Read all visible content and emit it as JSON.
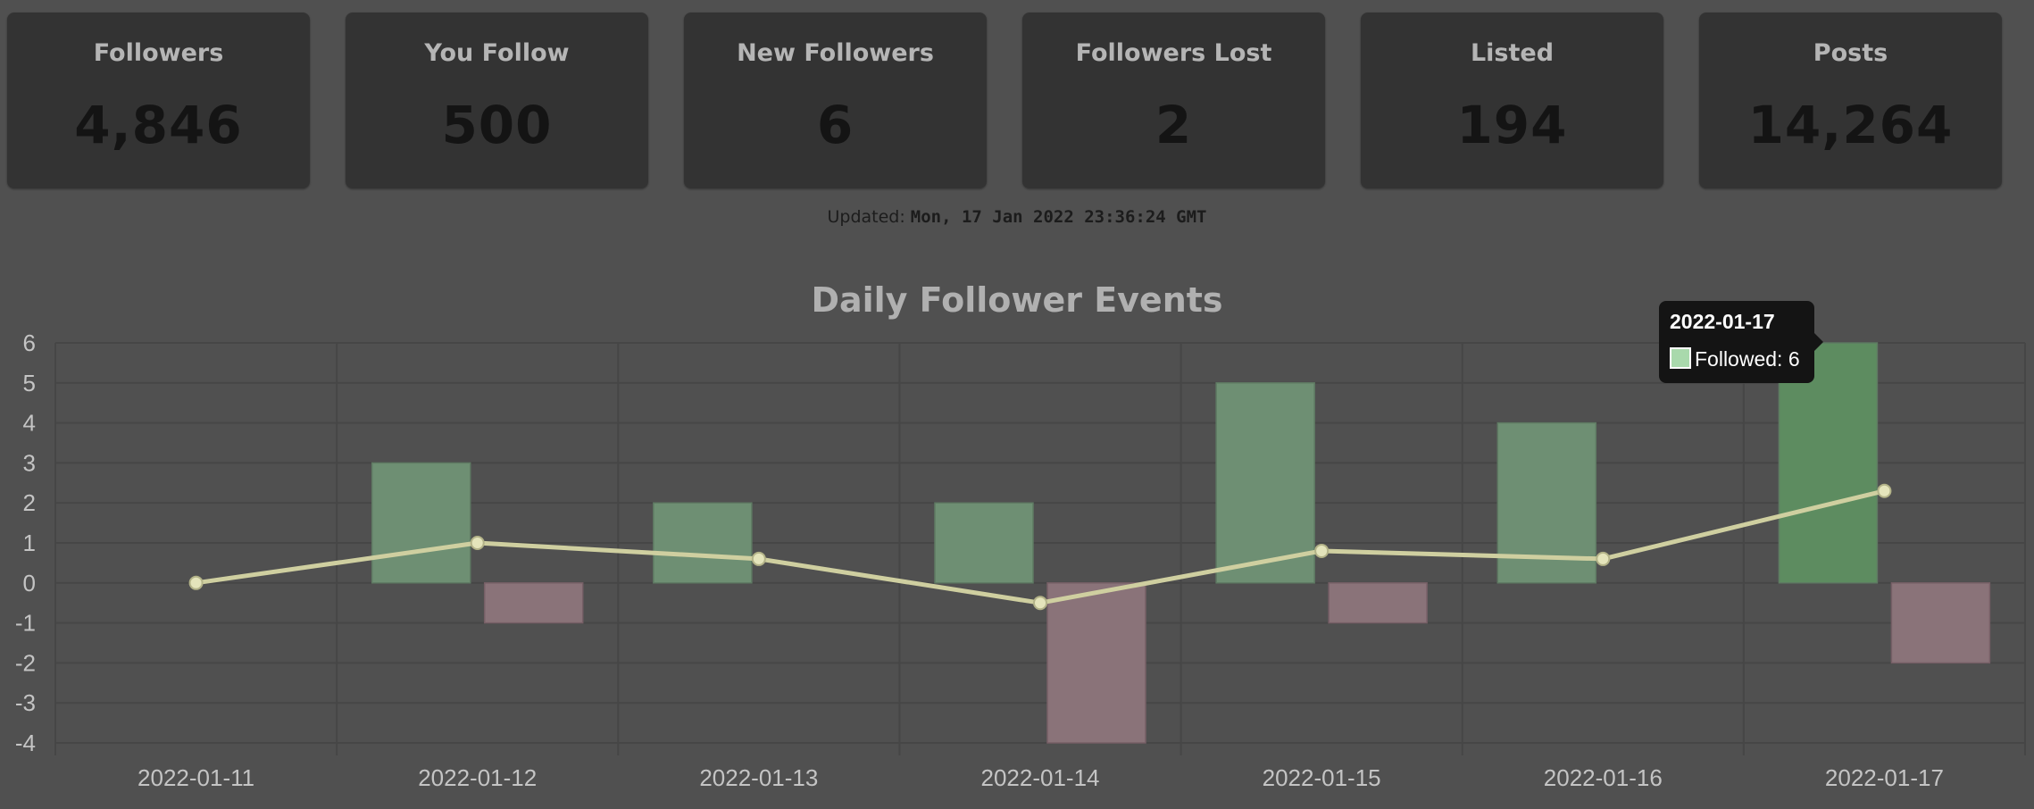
{
  "stats": [
    {
      "label": "Followers",
      "value": "4,846"
    },
    {
      "label": "You Follow",
      "value": "500"
    },
    {
      "label": "New Followers",
      "value": "6"
    },
    {
      "label": "Followers Lost",
      "value": "2"
    },
    {
      "label": "Listed",
      "value": "194"
    },
    {
      "label": "Posts",
      "value": "14,264"
    }
  ],
  "updated": {
    "label": "Updated:",
    "value": "Mon, 17 Jan 2022 23:36:24 GMT"
  },
  "colors": {
    "background": "#505050",
    "card": "#333333",
    "followed_bar": "#6e8f73",
    "followed_bar_active": "#5d8c60",
    "unfollowed_bar": "#8a7379",
    "trend_line": "#cfcfa0",
    "grid": "#464646"
  },
  "tooltip": {
    "title": "2022-01-17",
    "label": "Followed",
    "separator": ": ",
    "value": "6"
  },
  "chart_data": {
    "type": "bar",
    "title": "Daily Follower Events",
    "xlabel": "",
    "ylabel": "",
    "categories": [
      "2022-01-11",
      "2022-01-12",
      "2022-01-13",
      "2022-01-14",
      "2022-01-15",
      "2022-01-16",
      "2022-01-17"
    ],
    "series": [
      {
        "type": "bar",
        "values": [
          0,
          3,
          2,
          2,
          5,
          4,
          6
        ]
      },
      {
        "type": "bar",
        "values": [
          0,
          -1,
          0,
          -4,
          -1,
          0,
          -2
        ]
      },
      {
        "type": "line",
        "values": [
          0,
          1.0,
          0.6,
          -0.5,
          0.8,
          0.6,
          2.3
        ]
      }
    ],
    "ylim": [
      -4,
      6
    ],
    "yticks": [
      6,
      5,
      4,
      3,
      2,
      1,
      0,
      -1,
      -2,
      -3,
      -4
    ],
    "grid": true,
    "legend": "none"
  }
}
